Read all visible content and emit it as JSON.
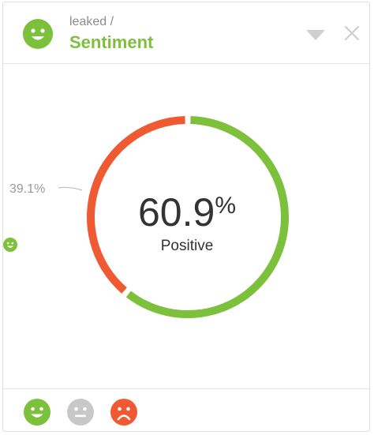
{
  "header": {
    "breadcrumb": "leaked /",
    "title": "Sentiment",
    "face_icon": "happy-face-icon",
    "dropdown_icon": "triangle-down-icon",
    "close_icon": "close-icon"
  },
  "chart_data": {
    "type": "pie",
    "style": "donut",
    "series": [
      {
        "name": "Positive",
        "value": 60.9,
        "color": "#7cc03c"
      },
      {
        "value": 39.1,
        "color": "#f05a32"
      }
    ],
    "center_value": "60.9",
    "center_unit": "%",
    "center_label": "Positive",
    "callout_label": "39.1%"
  },
  "footer": {
    "buttons": [
      {
        "icon": "happy-face-icon",
        "color": "#7cc03c"
      },
      {
        "icon": "neutral-face-icon",
        "color": "#c8c8c8"
      },
      {
        "icon": "sad-face-icon",
        "color": "#f05a32"
      }
    ]
  },
  "colors": {
    "positive": "#7cc03c",
    "negative": "#f05a32",
    "neutral": "#c8c8c8"
  }
}
